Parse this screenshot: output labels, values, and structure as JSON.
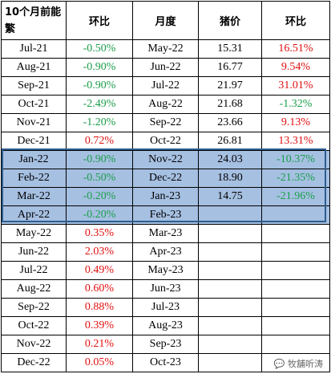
{
  "headers": [
    "10个月前能繁",
    "环比",
    "月度",
    "猪价",
    "环比"
  ],
  "rows": [
    {
      "a": "Jul-21",
      "b": "-0.50%",
      "bc": "green",
      "c": "May-22",
      "d": "15.31",
      "e": "16.51%",
      "ec": "red"
    },
    {
      "a": "Aug-21",
      "b": "-0.90%",
      "bc": "green",
      "c": "Jun-22",
      "d": "16.77",
      "e": "9.54%",
      "ec": "red"
    },
    {
      "a": "Sep-21",
      "b": "-0.90%",
      "bc": "green",
      "c": "Jul-22",
      "d": "21.97",
      "e": "31.01%",
      "ec": "red"
    },
    {
      "a": "Oct-21",
      "b": "-2.49%",
      "bc": "green",
      "c": "Aug-22",
      "d": "21.68",
      "e": "-1.32%",
      "ec": "green"
    },
    {
      "a": "Nov-21",
      "b": "-1.20%",
      "bc": "green",
      "c": "Sep-22",
      "d": "23.66",
      "e": "9.13%",
      "ec": "red"
    },
    {
      "a": "Dec-21",
      "b": "0.72%",
      "bc": "red",
      "c": "Oct-22",
      "d": "26.81",
      "e": "13.31%",
      "ec": "red"
    },
    {
      "a": "Jan-22",
      "b": "-0.90%",
      "bc": "green",
      "c": "Nov-22",
      "d": "24.03",
      "e": "-10.37%",
      "ec": "green",
      "hl": true
    },
    {
      "a": "Feb-22",
      "b": "-0.50%",
      "bc": "green",
      "c": "Dec-22",
      "d": "18.90",
      "e": "-21.35%",
      "ec": "green",
      "hl": true
    },
    {
      "a": "Mar-22",
      "b": "-0.20%",
      "bc": "green",
      "c": "Jan-23",
      "d": "14.75",
      "e": "-21.96%",
      "ec": "green",
      "hl": true
    },
    {
      "a": "Apr-22",
      "b": "-0.20%",
      "bc": "green",
      "c": "Feb-23",
      "d": "",
      "e": "",
      "ec": "",
      "hl": true
    },
    {
      "a": "May-22",
      "b": "0.35%",
      "bc": "red",
      "c": "Mar-23",
      "d": "",
      "e": "",
      "ec": ""
    },
    {
      "a": "Jun-22",
      "b": "2.03%",
      "bc": "red",
      "c": "Apr-23",
      "d": "",
      "e": "",
      "ec": ""
    },
    {
      "a": "Jul-22",
      "b": "0.49%",
      "bc": "red",
      "c": "May-23",
      "d": "",
      "e": "",
      "ec": ""
    },
    {
      "a": "Aug-22",
      "b": "0.60%",
      "bc": "red",
      "c": "Jun-23",
      "d": "",
      "e": "",
      "ec": ""
    },
    {
      "a": "Sep-22",
      "b": "0.88%",
      "bc": "red",
      "c": "Jul-23",
      "d": "",
      "e": "",
      "ec": ""
    },
    {
      "a": "Oct-22",
      "b": "0.39%",
      "bc": "red",
      "c": "Aug-23",
      "d": "",
      "e": "",
      "ec": ""
    },
    {
      "a": "Nov-22",
      "b": "0.21%",
      "bc": "red",
      "c": "Sep-23",
      "d": "",
      "e": "",
      "ec": ""
    },
    {
      "a": "Dec-22",
      "b": "0.05%",
      "bc": "red",
      "c": "Oct-23",
      "d": "",
      "e": "",
      "ec": ""
    }
  ],
  "colors": {
    "positive": "#e01010",
    "negative": "#1a9e4a",
    "highlight": "#a6c0e2",
    "highlight_border": "#2e5d8f"
  },
  "watermark": "牧舖听涛",
  "watermark_icon": "wechat-icon"
}
